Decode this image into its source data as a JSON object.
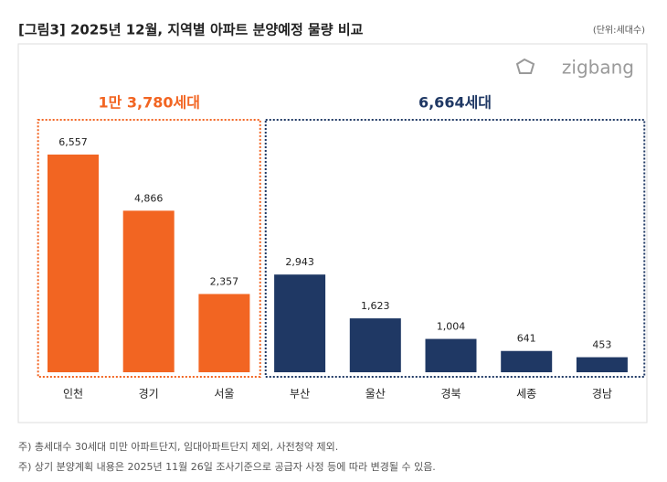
{
  "chart_data": {
    "type": "bar",
    "title": "[그림3] 2025년 12월, 지역별 아파트 분양예정 물량 비교",
    "unit_note": "(단위:세대수)",
    "logo": "zigbang",
    "categories": [
      "인천",
      "경기",
      "서울",
      "부산",
      "울산",
      "경북",
      "세종",
      "경남"
    ],
    "series": [
      {
        "name": "1만 3,780세대",
        "color": "#f26522",
        "values": [
          6557,
          4866,
          2357,
          null,
          null,
          null,
          null,
          null
        ],
        "value_labels": [
          "6,557",
          "4,866",
          "2,357",
          null,
          null,
          null,
          null,
          null
        ]
      },
      {
        "name": "6,664세대",
        "color": "#1f3864",
        "values": [
          null,
          null,
          null,
          2943,
          1623,
          1004,
          641,
          453
        ],
        "value_labels": [
          null,
          null,
          null,
          "2,943",
          "1,623",
          "1,004",
          "641",
          "453"
        ]
      }
    ],
    "notes": [
      "주) 총세대수 30세대 미만 아파트단지, 임대아파트단지 제외, 사전청약 제외.",
      "주) 상기 분양계획 내용은 2025년 11월 26일 조사기준으로 공급자 사정 등에 따라 변경될 수 있음."
    ]
  }
}
